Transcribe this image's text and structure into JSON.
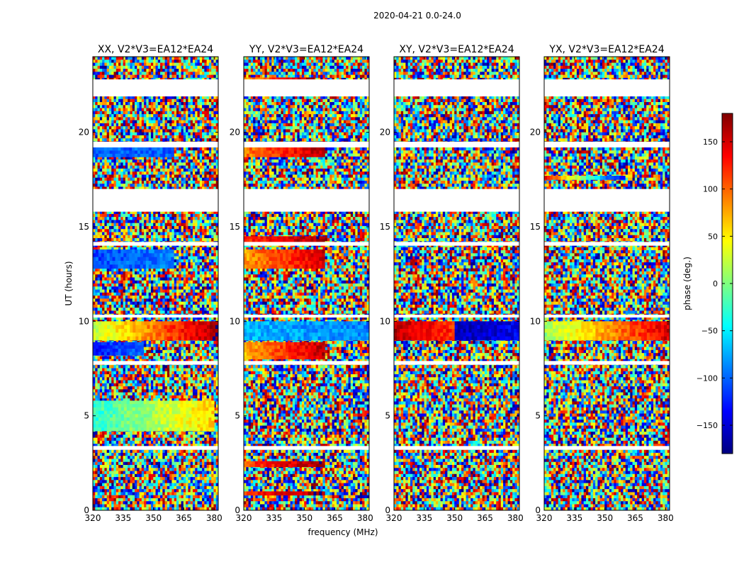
{
  "figure": {
    "suptitle": "2020-04-21 0.0-24.0"
  },
  "chart_data": {
    "type": "heatmap",
    "title": "2020-04-21 0.0-24.0",
    "xlabel": "frequency (MHz)",
    "ylabel": "UT (hours)",
    "xlim": [
      320,
      382
    ],
    "ylim": [
      0,
      24
    ],
    "xticks": [
      320,
      335,
      350,
      365,
      380
    ],
    "yticks": [
      0,
      5,
      10,
      15,
      20
    ],
    "colorbar": {
      "label": "phase (deg.)",
      "range": [
        -180,
        180
      ],
      "ticks": [
        -150,
        -100,
        -50,
        0,
        50,
        100,
        150
      ],
      "tick_labels": [
        "−150",
        "−100",
        "−50",
        "0",
        "50",
        "100",
        "150"
      ],
      "colormap": "jet",
      "colors": [
        "#00007f",
        "#0000ff",
        "#007fff",
        "#00ffff",
        "#7fff7f",
        "#ffff00",
        "#ff7f00",
        "#ff0000",
        "#7f0000"
      ],
      "placement": "right"
    },
    "missing_data_ut_ranges": [
      [
        17.0,
        15.8
      ],
      [
        22.8,
        21.9
      ],
      [
        19.5,
        19.2
      ],
      [
        3.4,
        3.2
      ],
      [
        7.9,
        7.7
      ],
      [
        10.35,
        10.2
      ],
      [
        14.2,
        14.0
      ]
    ],
    "panels": [
      {
        "name": "xx",
        "title": "XX, V2*V3=EA12*EA24",
        "coherent_features": [
          {
            "ut": [
              9.0,
              10.0
            ],
            "mhz": [
              320,
              382
            ],
            "phase_start": 20,
            "phase_end": 170
          },
          {
            "ut": [
              18.7,
              19.2
            ],
            "mhz": [
              320,
              360
            ],
            "phase_start": -100,
            "phase_end": -100
          },
          {
            "ut": [
              12.8,
              13.8
            ],
            "mhz": [
              320,
              360
            ],
            "phase_start": -110,
            "phase_end": -90
          },
          {
            "ut": [
              8.2,
              8.9
            ],
            "mhz": [
              320,
              345
            ],
            "phase_start": -130,
            "phase_end": -100
          },
          {
            "ut": [
              4.2,
              5.8
            ],
            "mhz": [
              320,
              380
            ],
            "phase_start": -30,
            "phase_end": 60
          }
        ]
      },
      {
        "name": "yy",
        "title": "YY, V2*V3=EA12*EA24",
        "coherent_features": [
          {
            "ut": [
              9.0,
              10.0
            ],
            "mhz": [
              320,
              382
            ],
            "phase_start": -70,
            "phase_end": -90
          },
          {
            "ut": [
              18.7,
              19.2
            ],
            "mhz": [
              320,
              360
            ],
            "phase_start": 90,
            "phase_end": 160
          },
          {
            "ut": [
              12.8,
              13.8
            ],
            "mhz": [
              320,
              360
            ],
            "phase_start": 80,
            "phase_end": 150
          },
          {
            "ut": [
              8.0,
              8.9
            ],
            "mhz": [
              320,
              360
            ],
            "phase_start": 70,
            "phase_end": 160
          },
          {
            "ut": [
              22.5,
              22.9
            ],
            "mhz": [
              320,
              355
            ],
            "phase_start": 80,
            "phase_end": 170
          },
          {
            "ut": [
              14.2,
              14.5
            ],
            "mhz": [
              320,
              360
            ],
            "phase_start": 120,
            "phase_end": 170
          },
          {
            "ut": [
              2.3,
              2.6
            ],
            "mhz": [
              320,
              360
            ],
            "phase_start": 110,
            "phase_end": 170
          },
          {
            "ut": [
              0.8,
              1.0
            ],
            "mhz": [
              320,
              360
            ],
            "phase_start": 120,
            "phase_end": 170
          }
        ]
      },
      {
        "name": "xy",
        "title": "XY, V2*V3=EA12*EA24",
        "coherent_features": [
          {
            "ut": [
              9.0,
              10.0
            ],
            "mhz": [
              320,
              350
            ],
            "phase_start": 160,
            "phase_end": 120
          },
          {
            "ut": [
              9.0,
              10.0
            ],
            "mhz": [
              350,
              382
            ],
            "phase_start": -160,
            "phase_end": -140
          }
        ]
      },
      {
        "name": "yx",
        "title": "YX, V2*V3=EA12*EA24",
        "coherent_features": [
          {
            "ut": [
              9.0,
              10.0
            ],
            "mhz": [
              320,
              382
            ],
            "phase_start": 10,
            "phase_end": 150
          },
          {
            "ut": [
              17.5,
              17.7
            ],
            "mhz": [
              320,
              360
            ],
            "phase_start": 140,
            "phase_end": -150
          }
        ]
      }
    ]
  }
}
